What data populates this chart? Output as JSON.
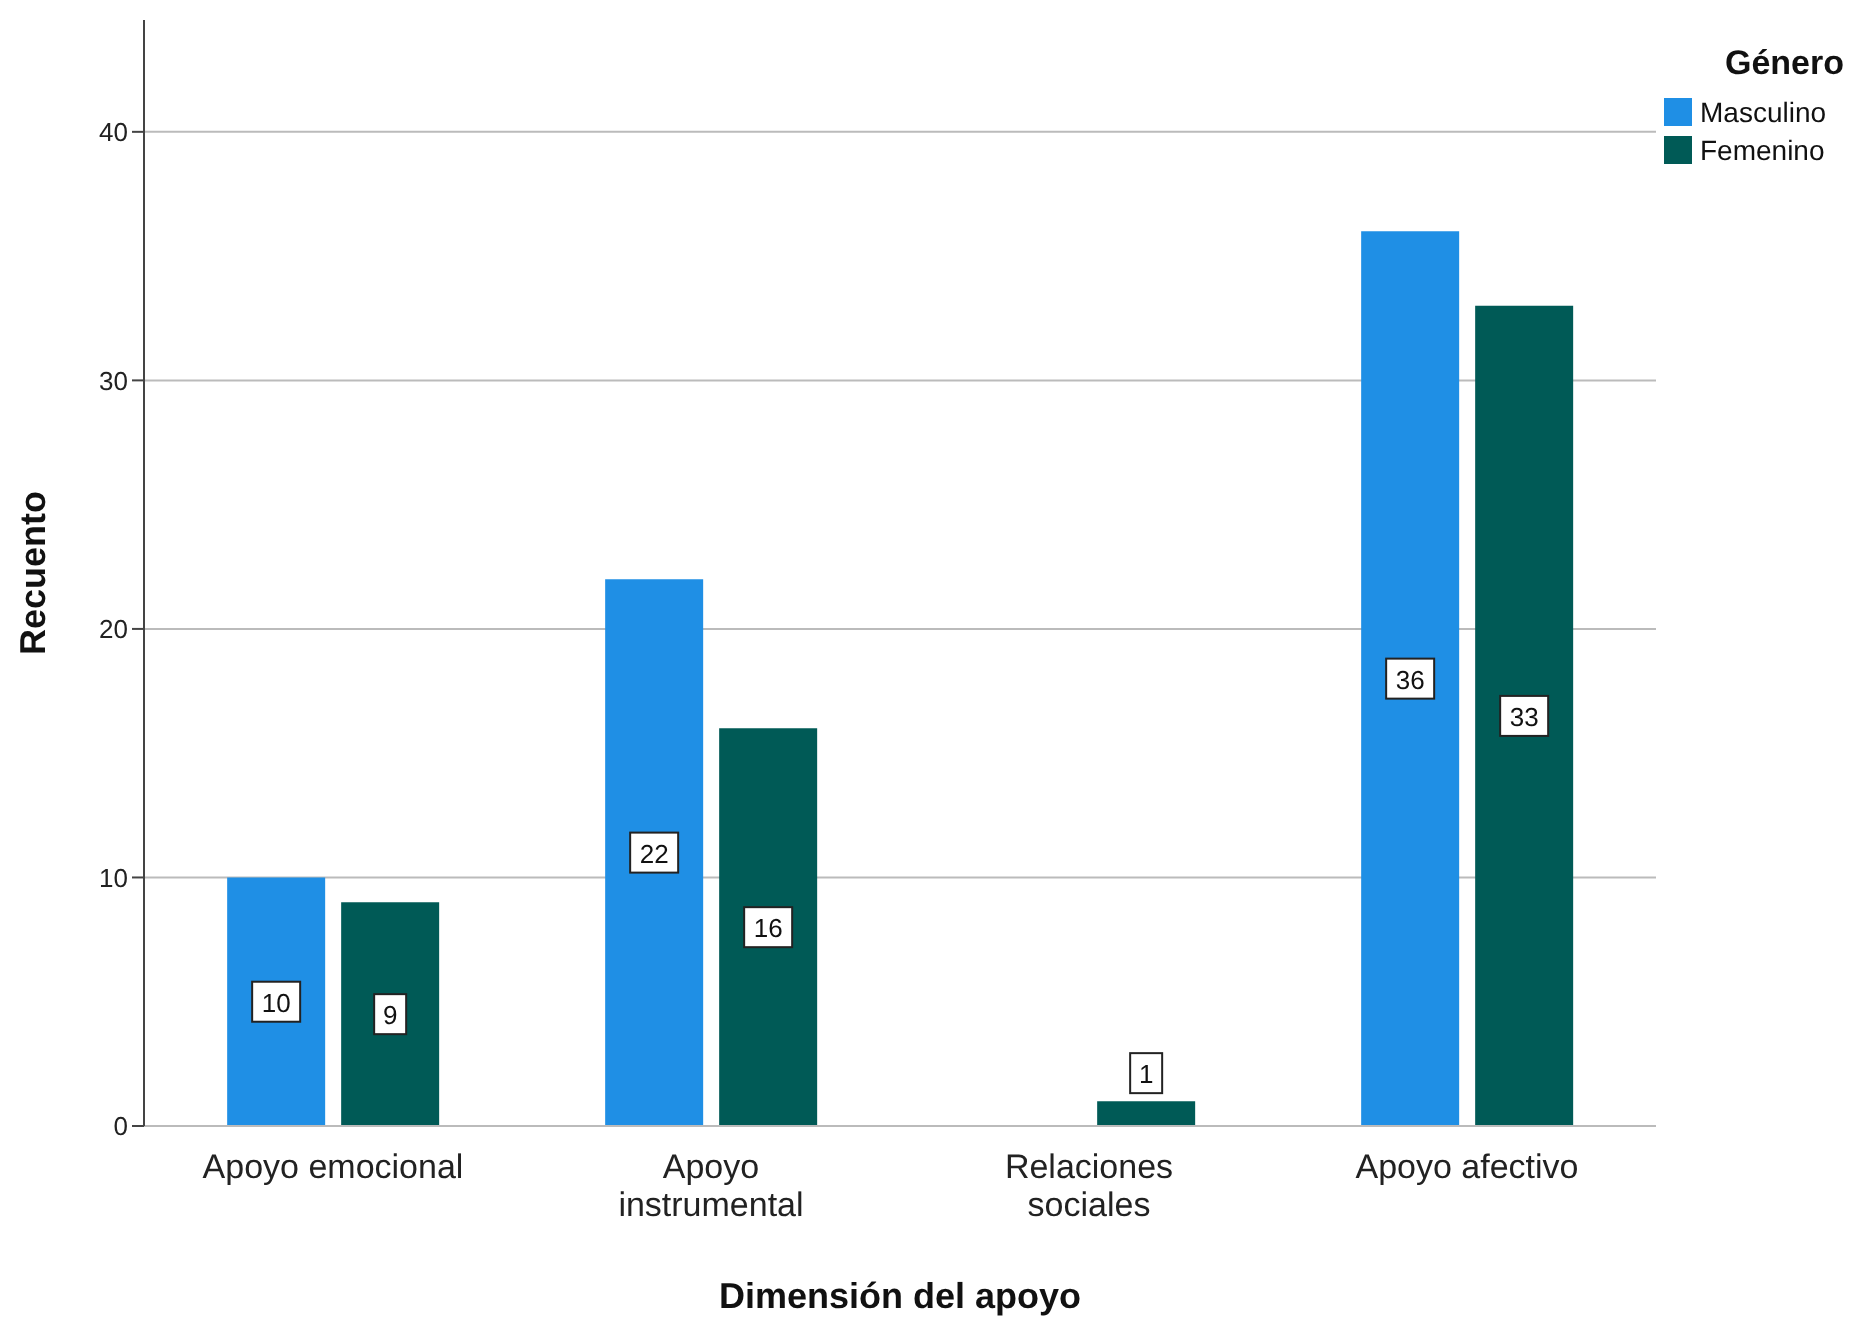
{
  "chart_data": {
    "type": "bar",
    "xlabel": "Dimensión del apoyo",
    "ylabel": "Recuento",
    "legend_title": "Género",
    "categories": [
      "Apoyo emocional",
      "Apoyo instrumental",
      "Relaciones sociales",
      "Apoyo afectivo"
    ],
    "series": [
      {
        "name": "Masculino",
        "color": "#1f8fe5",
        "values": [
          10,
          22,
          null,
          36
        ]
      },
      {
        "name": "Femenino",
        "color": "#005a56",
        "values": [
          9,
          16,
          1,
          33
        ]
      }
    ],
    "ylim": [
      0,
      44.5
    ],
    "yticks": [
      0,
      10,
      20,
      30,
      40
    ],
    "grid": "y",
    "legend": "top right",
    "data_labels": true
  }
}
